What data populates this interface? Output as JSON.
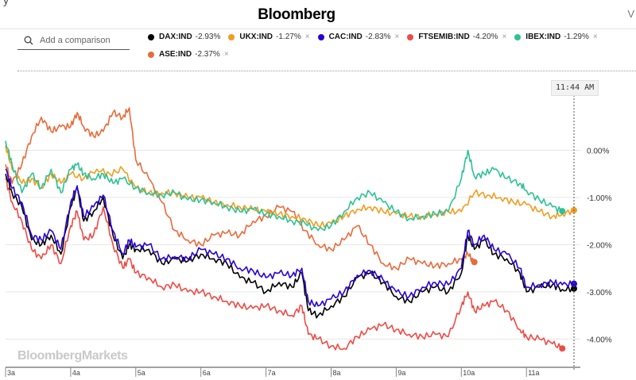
{
  "header": {
    "brand": "Bloomberg",
    "cut_text": "y",
    "edge_char": "V"
  },
  "search": {
    "placeholder": "Add a comparison"
  },
  "legend": [
    {
      "ticker": "DAX:IND",
      "change": "-2.93%",
      "color": "#000000",
      "removable": false
    },
    {
      "ticker": "UKX:IND",
      "change": "-1.27%",
      "color": "#f39c1f",
      "removable": true
    },
    {
      "ticker": "CAC:IND",
      "change": "-2.83%",
      "color": "#2a00d4",
      "removable": true
    },
    {
      "ticker": "FTSEMIB:IND",
      "change": "-4.20%",
      "color": "#f04a45",
      "removable": true
    },
    {
      "ticker": "IBEX:IND",
      "change": "-1.29%",
      "color": "#2cc296",
      "removable": true
    },
    {
      "ticker": "ASE:IND",
      "change": "-2.37%",
      "color": "#eb6a3a",
      "removable": true
    }
  ],
  "current_time": "11:44 AM",
  "watermark": "BloombergMarkets",
  "icons": {
    "search": "search-icon",
    "remove": "close-icon"
  },
  "chart_data": {
    "type": "line",
    "x_unit": "hour",
    "x_ticks": [
      "3a",
      "4a",
      "5a",
      "6a",
      "7a",
      "8a",
      "9a",
      "10a",
      "11a"
    ],
    "xlim": [
      3.0,
      11.73
    ],
    "y_ticks": [
      "0.00%",
      "-1.00%",
      "-2.00%",
      "-3.00%",
      "-4.00%"
    ],
    "y_tick_values": [
      0,
      -1,
      -2,
      -3,
      -4
    ],
    "ylim": [
      -4.6,
      1.0
    ],
    "grid": "horizontal",
    "cursor_x": 11.73,
    "series": [
      {
        "name": "DAX:IND",
        "color": "#000000",
        "x": [
          3.0,
          3.1,
          3.25,
          3.4,
          3.55,
          3.7,
          3.85,
          4.0,
          4.1,
          4.2,
          4.35,
          4.5,
          4.65,
          4.8,
          4.9,
          5.0,
          5.2,
          5.4,
          5.6,
          5.8,
          6.0,
          6.2,
          6.4,
          6.6,
          6.8,
          7.0,
          7.2,
          7.4,
          7.55,
          7.65,
          7.8,
          8.0,
          8.2,
          8.4,
          8.6,
          8.8,
          9.0,
          9.2,
          9.4,
          9.6,
          9.8,
          10.0,
          10.1,
          10.2,
          10.35,
          10.5,
          10.7,
          10.9,
          11.0,
          11.2,
          11.4,
          11.55,
          11.73
        ],
        "y": [
          -0.5,
          -0.9,
          -1.2,
          -1.9,
          -2.0,
          -1.8,
          -2.2,
          -1.2,
          -0.8,
          -1.5,
          -1.3,
          -1.0,
          -1.8,
          -2.3,
          -2.0,
          -2.1,
          -2.1,
          -2.4,
          -2.3,
          -2.35,
          -2.2,
          -2.3,
          -2.4,
          -2.7,
          -2.8,
          -3.0,
          -2.8,
          -2.9,
          -2.6,
          -3.4,
          -3.5,
          -3.3,
          -3.1,
          -2.7,
          -2.6,
          -2.8,
          -3.1,
          -3.2,
          -3.0,
          -2.9,
          -3.0,
          -2.6,
          -1.8,
          -2.1,
          -1.9,
          -2.2,
          -2.3,
          -2.6,
          -3.0,
          -2.9,
          -2.85,
          -2.95,
          -2.93
        ]
      },
      {
        "name": "UKX:IND",
        "color": "#f39c1f",
        "x": [
          3.0,
          3.1,
          3.25,
          3.4,
          3.55,
          3.7,
          3.85,
          4.0,
          4.2,
          4.4,
          4.6,
          4.8,
          5.0,
          5.2,
          5.4,
          5.6,
          5.8,
          6.0,
          6.2,
          6.4,
          6.6,
          6.8,
          7.0,
          7.2,
          7.4,
          7.6,
          7.8,
          8.0,
          8.2,
          8.4,
          8.6,
          8.8,
          9.0,
          9.2,
          9.4,
          9.6,
          9.8,
          10.0,
          10.2,
          10.4,
          10.6,
          10.8,
          11.0,
          11.2,
          11.4,
          11.55,
          11.73
        ],
        "y": [
          0.1,
          -0.4,
          -0.7,
          -0.6,
          -0.8,
          -0.5,
          -0.7,
          -0.5,
          -0.6,
          -0.4,
          -0.5,
          -0.4,
          -0.8,
          -0.9,
          -0.9,
          -0.9,
          -1.0,
          -1.0,
          -1.1,
          -1.15,
          -1.2,
          -1.25,
          -1.3,
          -1.35,
          -1.4,
          -1.45,
          -1.6,
          -1.55,
          -1.4,
          -1.25,
          -1.2,
          -1.3,
          -1.35,
          -1.4,
          -1.4,
          -1.35,
          -1.3,
          -1.3,
          -0.9,
          -0.95,
          -1.0,
          -1.1,
          -1.15,
          -1.3,
          -1.4,
          -1.35,
          -1.27
        ]
      },
      {
        "name": "CAC:IND",
        "color": "#2a00d4",
        "x": [
          3.0,
          3.1,
          3.25,
          3.4,
          3.55,
          3.7,
          3.85,
          4.0,
          4.1,
          4.2,
          4.35,
          4.5,
          4.65,
          4.8,
          4.9,
          5.0,
          5.2,
          5.4,
          5.6,
          5.8,
          6.0,
          6.2,
          6.4,
          6.6,
          6.8,
          7.0,
          7.2,
          7.4,
          7.55,
          7.65,
          7.8,
          8.0,
          8.2,
          8.4,
          8.6,
          8.8,
          9.0,
          9.2,
          9.4,
          9.6,
          9.8,
          10.0,
          10.1,
          10.2,
          10.35,
          10.5,
          10.7,
          10.9,
          11.0,
          11.2,
          11.4,
          11.55,
          11.73
        ],
        "y": [
          -0.4,
          -0.8,
          -1.1,
          -1.8,
          -1.9,
          -1.7,
          -2.1,
          -1.1,
          -0.75,
          -1.4,
          -1.2,
          -0.95,
          -1.7,
          -2.2,
          -1.9,
          -2.05,
          -2.0,
          -2.3,
          -2.25,
          -2.3,
          -2.1,
          -2.2,
          -2.3,
          -2.5,
          -2.55,
          -2.7,
          -2.6,
          -2.65,
          -2.5,
          -3.2,
          -3.3,
          -3.15,
          -3.0,
          -2.65,
          -2.55,
          -2.75,
          -3.0,
          -3.1,
          -2.9,
          -2.8,
          -2.85,
          -2.5,
          -1.7,
          -2.0,
          -1.8,
          -2.1,
          -2.2,
          -2.5,
          -2.9,
          -2.85,
          -2.8,
          -2.85,
          -2.83
        ]
      },
      {
        "name": "FTSEMIB:IND",
        "color": "#f04a45",
        "x": [
          3.0,
          3.1,
          3.25,
          3.4,
          3.55,
          3.7,
          3.85,
          4.0,
          4.1,
          4.2,
          4.35,
          4.5,
          4.65,
          4.8,
          4.9,
          5.0,
          5.2,
          5.4,
          5.6,
          5.8,
          6.0,
          6.2,
          6.4,
          6.6,
          6.8,
          7.0,
          7.2,
          7.4,
          7.55,
          7.65,
          7.8,
          8.0,
          8.2,
          8.4,
          8.6,
          8.8,
          9.0,
          9.2,
          9.4,
          9.6,
          9.8,
          10.0,
          10.1,
          10.2,
          10.35,
          10.5,
          10.7,
          10.9,
          11.0,
          11.2,
          11.4,
          11.55
        ],
        "y": [
          -0.6,
          -1.1,
          -1.5,
          -2.1,
          -2.3,
          -2.0,
          -2.4,
          -1.6,
          -1.3,
          -1.9,
          -1.8,
          -1.2,
          -2.0,
          -2.5,
          -2.3,
          -2.6,
          -2.7,
          -2.9,
          -2.85,
          -3.0,
          -3.0,
          -3.1,
          -3.2,
          -3.3,
          -3.35,
          -3.3,
          -3.4,
          -3.5,
          -3.3,
          -3.9,
          -4.0,
          -4.15,
          -4.2,
          -3.95,
          -3.8,
          -3.7,
          -3.8,
          -3.9,
          -3.95,
          -3.9,
          -3.95,
          -3.3,
          -3.0,
          -3.4,
          -3.3,
          -3.2,
          -3.4,
          -3.8,
          -3.95,
          -4.0,
          -4.1,
          -4.2
        ]
      },
      {
        "name": "IBEX:IND",
        "color": "#2cc296",
        "x": [
          3.0,
          3.1,
          3.25,
          3.4,
          3.55,
          3.7,
          3.85,
          4.0,
          4.1,
          4.2,
          4.35,
          4.5,
          4.65,
          4.8,
          5.0,
          5.2,
          5.4,
          5.6,
          5.8,
          6.0,
          6.2,
          6.4,
          6.6,
          6.8,
          7.0,
          7.2,
          7.4,
          7.6,
          7.8,
          8.0,
          8.2,
          8.4,
          8.6,
          8.8,
          9.0,
          9.2,
          9.4,
          9.6,
          9.8,
          10.0,
          10.1,
          10.2,
          10.35,
          10.5,
          10.7,
          10.9,
          11.0,
          11.2,
          11.4,
          11.55
        ],
        "y": [
          0.2,
          -0.3,
          -0.9,
          -0.5,
          -0.8,
          -0.4,
          -0.9,
          -0.4,
          -0.3,
          -0.5,
          -0.6,
          -0.5,
          -0.7,
          -0.6,
          -0.8,
          -0.9,
          -0.95,
          -0.9,
          -1.05,
          -1.05,
          -1.1,
          -1.2,
          -1.3,
          -1.25,
          -1.35,
          -1.4,
          -1.5,
          -1.55,
          -1.7,
          -1.6,
          -1.3,
          -1.0,
          -0.9,
          -1.1,
          -1.3,
          -1.45,
          -1.4,
          -1.35,
          -1.3,
          -0.6,
          0.0,
          -0.55,
          -0.5,
          -0.4,
          -0.6,
          -0.7,
          -0.85,
          -1.05,
          -1.2,
          -1.29
        ]
      },
      {
        "name": "ASE:IND",
        "color": "#eb6a3a",
        "x": [
          3.0,
          3.1,
          3.25,
          3.4,
          3.55,
          3.7,
          3.85,
          4.0,
          4.1,
          4.2,
          4.35,
          4.5,
          4.65,
          4.8,
          4.9,
          5.0,
          5.2,
          5.4,
          5.6,
          5.8,
          6.0,
          6.2,
          6.4,
          6.6,
          6.8,
          7.0,
          7.2,
          7.4,
          7.6,
          7.8,
          8.0,
          8.2,
          8.4,
          8.6,
          8.8,
          9.0,
          9.2,
          9.4,
          9.6,
          9.8,
          10.0,
          10.1,
          10.2
        ],
        "y": [
          -0.3,
          -0.7,
          -0.3,
          0.3,
          0.7,
          0.4,
          0.5,
          0.5,
          0.8,
          0.5,
          0.3,
          0.4,
          0.8,
          0.7,
          0.9,
          -0.2,
          -0.6,
          -1.1,
          -1.7,
          -1.9,
          -2.0,
          -1.8,
          -1.75,
          -1.8,
          -1.5,
          -1.4,
          -1.2,
          -1.3,
          -1.7,
          -2.0,
          -2.1,
          -1.9,
          -1.6,
          -2.0,
          -2.4,
          -2.5,
          -2.3,
          -2.4,
          -2.45,
          -2.4,
          -2.3,
          -2.2,
          -2.37
        ]
      }
    ]
  }
}
